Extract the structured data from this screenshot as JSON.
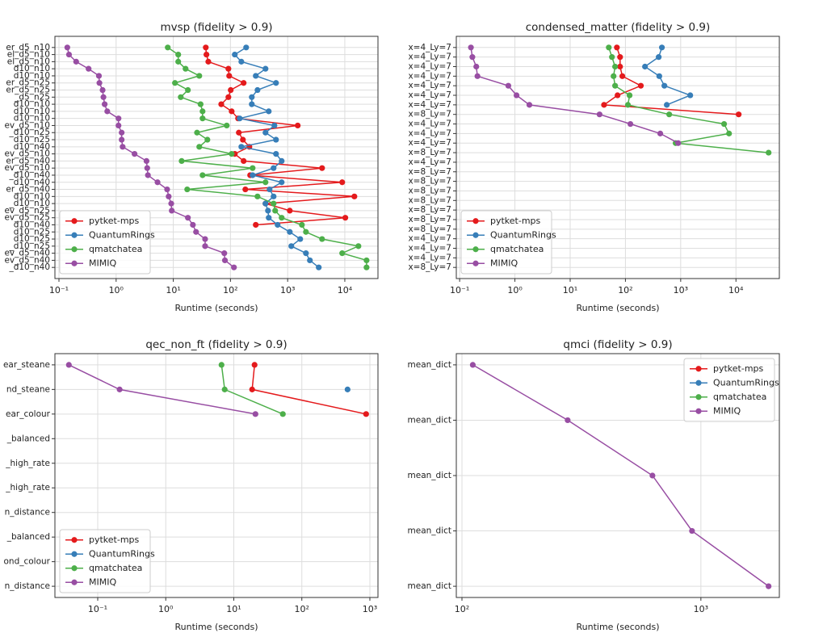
{
  "chart_data": [
    {
      "type": "line",
      "title": "mvsp (fidelity > 0.9)",
      "xlabel": "Runtime (seconds)",
      "xscale": "log",
      "grid": true,
      "legend": "lower left",
      "xlim": [
        0.085,
        38000
      ],
      "xticks": [
        {
          "value": 0.1,
          "label": "10⁻¹"
        },
        {
          "value": 1,
          "label": "10⁰"
        },
        {
          "value": 10,
          "label": "10¹"
        },
        {
          "value": 100,
          "label": "10²"
        },
        {
          "value": 1000,
          "label": "10³"
        },
        {
          "value": 10000,
          "label": "10⁴"
        }
      ],
      "categories": [
        "er_d5_n10",
        "el_d5_n10",
        "el_d5_n10",
        "d10_n10",
        "d10_n10",
        "er_d5_n25",
        "er_d5_n25",
        "_d5_n25",
        "d10_n10",
        "d10_n10",
        "d10_n10",
        "ev_d5_n10",
        "_d10_n25",
        "d10_n25",
        "d10_n40",
        "ev_d5_n10",
        "er_d5_n40",
        "ev_d5_n10",
        "_d10_n40",
        "d10_n40",
        "er_d5_n40",
        "d10_n10",
        "_d10_n10",
        "ev_d5_n25",
        "ev_d5_n25",
        "d10_n40",
        "d10_n25",
        "d10_n25",
        "_d10_n25",
        "ev_d5_n40",
        "ev_d5_n40",
        "_d10_n40"
      ],
      "series": [
        {
          "name": "pytket-mps",
          "color": "#e41a1c",
          "values": [
            37,
            38,
            41,
            92,
            95,
            170,
            101,
            92,
            69,
            105,
            136,
            1500,
            140,
            165,
            214,
            119,
            170,
            4000,
            221,
            9000,
            182,
            14700,
            410,
            1090,
            10200,
            277,
            null,
            null,
            null,
            null,
            null,
            null
          ]
        },
        {
          "name": "QuantumRings",
          "color": "#377eb8",
          "values": [
            188,
            119,
            155,
            410,
            277,
            626,
            297,
            236,
            236,
            467,
            145,
            587,
            410,
            626,
            155,
            626,
            786,
            568,
            244,
            786,
            483,
            568,
            410,
            453,
            467,
            668,
            1090,
            1660,
            1160,
            2090,
            2450,
            3500
          ]
        },
        {
          "name": "qmatchatea",
          "color": "#4daf4a",
          "values": [
            8,
            12.2,
            12.2,
            16.4,
            28.5,
            10.7,
            18,
            13.5,
            30,
            32.5,
            32.5,
            86,
            26,
            39.5,
            28.5,
            105,
            14,
            244,
            32.5,
            410,
            17.5,
            297,
            568,
            605,
            786,
            1775,
            2090,
            4000,
            17300,
            9000,
            24000,
            24000
          ]
        },
        {
          "name": "MIMIQ",
          "color": "#984ea3",
          "values": [
            0.14,
            0.15,
            0.2,
            0.33,
            0.5,
            0.51,
            0.58,
            0.6,
            0.63,
            0.7,
            1.1,
            1.1,
            1.25,
            1.25,
            1.3,
            2.1,
            3.4,
            3.5,
            3.6,
            5.3,
            7.8,
            8.3,
            9.2,
            9.4,
            18,
            22,
            25,
            36,
            36,
            78,
            80,
            115
          ]
        }
      ]
    },
    {
      "type": "line",
      "title": "condensed_matter (fidelity > 0.9)",
      "xlabel": "Runtime (seconds)",
      "xscale": "log",
      "grid": true,
      "legend": "lower left",
      "xlim": [
        0.087,
        61000
      ],
      "xticks": [
        {
          "value": 0.1,
          "label": "10⁻¹"
        },
        {
          "value": 1,
          "label": "10⁰"
        },
        {
          "value": 10,
          "label": "10¹"
        },
        {
          "value": 100,
          "label": "10²"
        },
        {
          "value": 1000,
          "label": "10³"
        },
        {
          "value": 10000,
          "label": "10⁴"
        }
      ],
      "categories": [
        "x=4_Ly=7",
        "x=4_Ly=7",
        "x=4_Ly=7",
        "x=4_Ly=7",
        "x=4_Ly=7",
        "x=4_Ly=7",
        "x=4_Ly=7",
        "x=8_Ly=7",
        "x=4_Ly=7",
        "x=4_Ly=7",
        "x=4_Ly=7",
        "x=8_Ly=7",
        "x=4_Ly=7",
        "x=8_Ly=7",
        "x=8_Ly=7",
        "x=8_Ly=7",
        "x=8_Ly=7",
        "x=8_Ly=7",
        "x=8_Ly=7",
        "x=8_Ly=7",
        "x=4_Ly=7",
        "x=4_Ly=7",
        "x=4_Ly=7",
        "x=8_Ly=7"
      ],
      "series": [
        {
          "name": "pytket-mps",
          "color": "#e41a1c",
          "values": [
            70,
            80,
            80,
            88,
            190,
            72,
            41,
            11200,
            null,
            null,
            null,
            null,
            null,
            null,
            null,
            null,
            null,
            null,
            null,
            null,
            null,
            null,
            null,
            null
          ]
        },
        {
          "name": "QuantumRings",
          "color": "#377eb8",
          "values": [
            457,
            400,
            226,
            410,
            507,
            1490,
            560,
            null,
            null,
            null,
            null,
            null,
            null,
            null,
            null,
            null,
            null,
            null,
            null,
            null,
            null,
            null,
            null,
            null
          ]
        },
        {
          "name": "qmatchatea",
          "color": "#4daf4a",
          "values": [
            50,
            57,
            65,
            61,
            65,
            119,
            111,
            620,
            6100,
            7500,
            810,
            39000,
            null,
            null,
            null,
            null,
            null,
            null,
            null,
            null,
            null,
            null,
            null,
            null
          ]
        },
        {
          "name": "MIMIQ",
          "color": "#984ea3",
          "values": [
            0.16,
            0.17,
            0.2,
            0.21,
            0.76,
            1.07,
            1.83,
            34,
            123,
            427,
            900,
            null,
            null,
            null,
            null,
            null,
            null,
            null,
            null,
            null,
            null,
            null,
            null,
            null
          ]
        }
      ]
    },
    {
      "type": "line",
      "title": "qec_non_ft (fidelity > 0.9)",
      "xlabel": "Runtime (seconds)",
      "xscale": "log",
      "grid": true,
      "legend": "lower left",
      "xlim": [
        0.0235,
        1315
      ],
      "xticks": [
        {
          "value": 0.1,
          "label": "10⁻¹"
        },
        {
          "value": 1,
          "label": "10⁰"
        },
        {
          "value": 10,
          "label": "10¹"
        },
        {
          "value": 100,
          "label": "10²"
        },
        {
          "value": 1000,
          "label": "10³"
        }
      ],
      "categories": [
        "ear_steane",
        "nd_steane",
        "ear_colour",
        "_balanced",
        "_high_rate",
        "_high_rate",
        "n_distance",
        "_balanced",
        "ond_colour",
        "n_distance"
      ],
      "series": [
        {
          "name": "pytket-mps",
          "color": "#e41a1c",
          "values": [
            20.2,
            18.6,
            880,
            null,
            null,
            null,
            null,
            null,
            null,
            null
          ]
        },
        {
          "name": "QuantumRings",
          "color": "#377eb8",
          "values": [
            null,
            470,
            null,
            null,
            null,
            null,
            null,
            null,
            null,
            null
          ]
        },
        {
          "name": "qmatchatea",
          "color": "#4daf4a",
          "values": [
            6.6,
            7.35,
            52.6,
            null,
            null,
            null,
            null,
            null,
            null,
            null
          ]
        },
        {
          "name": "MIMIQ",
          "color": "#984ea3",
          "values": [
            0.0377,
            0.21,
            20.8,
            null,
            null,
            null,
            null,
            null,
            null,
            null
          ]
        }
      ]
    },
    {
      "type": "line",
      "title": "qmci (fidelity > 0.9)",
      "xlabel": "Runtime (seconds)",
      "xscale": "log",
      "grid": true,
      "legend": "upper right",
      "xlim": [
        94.7,
        2130
      ],
      "xticks": [
        {
          "value": 100,
          "label": "10²"
        },
        {
          "value": 1000,
          "label": "10³"
        }
      ],
      "categories": [
        "mean_dict",
        "mean_dict",
        "mean_dict",
        "mean_dict",
        "mean_dict"
      ],
      "series": [
        {
          "name": "pytket-mps",
          "color": "#e41a1c",
          "values": [
            null,
            null,
            null,
            null,
            null
          ]
        },
        {
          "name": "QuantumRings",
          "color": "#377eb8",
          "values": [
            null,
            null,
            null,
            null,
            null
          ]
        },
        {
          "name": "qmatchatea",
          "color": "#4daf4a",
          "values": [
            null,
            null,
            null,
            null,
            null
          ]
        },
        {
          "name": "MIMIQ",
          "color": "#984ea3",
          "values": [
            111,
            277,
            627,
            918,
            1920
          ]
        }
      ]
    }
  ]
}
